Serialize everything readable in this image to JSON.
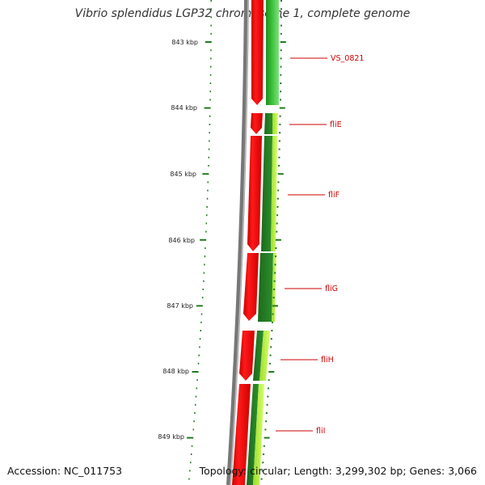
{
  "title": "Vibrio splendidus LGP32 chromosome 1, complete genome",
  "footer": {
    "accession": "Accession: NC_011753",
    "summary": "Topology: circular; Length: 3,299,302 bp; Genes: 3,066"
  },
  "colors": {
    "axis_tick": "#1f7a1f",
    "forward_gene": "#ff0000",
    "gene_label": "#cc0000",
    "backbone": "#777777"
  },
  "ruler": {
    "unit": "kbp",
    "labels": [
      "843 kbp",
      "844 kbp",
      "845 kbp",
      "846 kbp",
      "847 kbp",
      "848 kbp",
      "849 kbp"
    ],
    "minor_ticks_per_major": 8
  },
  "genes": [
    {
      "name": "VS_0821"
    },
    {
      "name": "fliE"
    },
    {
      "name": "fliF"
    },
    {
      "name": "fliG"
    },
    {
      "name": "fliH"
    },
    {
      "name": "fliI"
    }
  ]
}
